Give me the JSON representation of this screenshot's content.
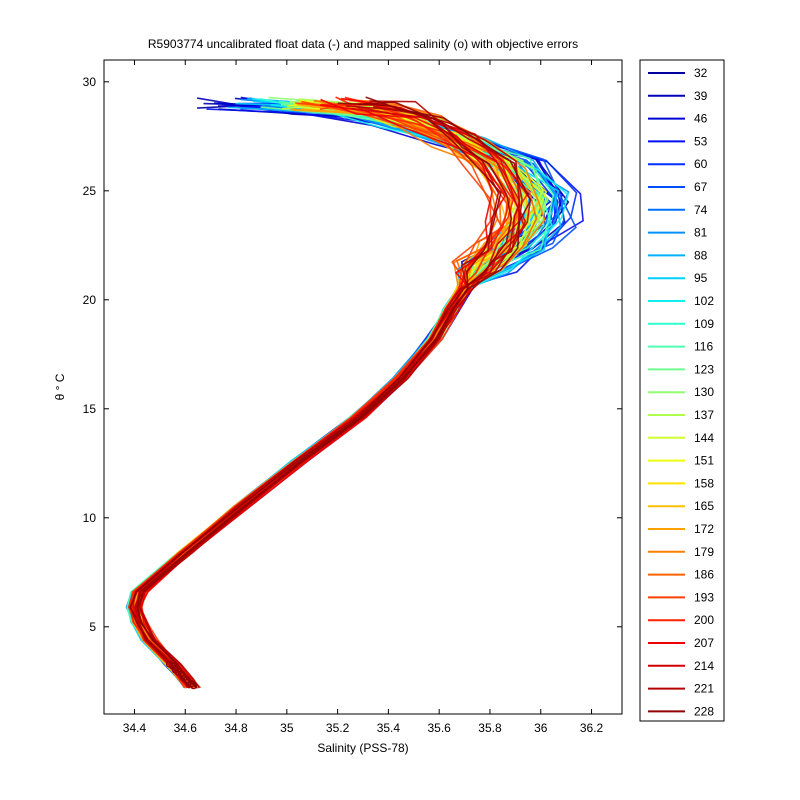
{
  "chart_data": {
    "type": "line",
    "title": "R5903774 uncalibrated float data (-) and mapped salinity (o) with objective errors",
    "xlabel": "Salinity (PSS-78)",
    "ylabel": "θ ° C",
    "xlim": [
      34.28,
      36.32
    ],
    "ylim": [
      1,
      31
    ],
    "x_ticks": [
      34.4,
      34.6,
      34.8,
      35,
      35.2,
      35.4,
      35.6,
      35.8,
      36,
      36.2
    ],
    "x_tick_labels": [
      "34.4",
      "34.6",
      "34.8",
      "35",
      "35.2",
      "35.4",
      "35.6",
      "35.8",
      "36",
      "36.2"
    ],
    "y_ticks": [
      5,
      10,
      15,
      20,
      25,
      30
    ],
    "y_tick_labels": [
      "5",
      "10",
      "15",
      "20",
      "25",
      "30"
    ],
    "grid": false,
    "legend_position": "outside-right",
    "colormap": "jet",
    "series": [
      {
        "name": "32",
        "color": "#00009f"
      },
      {
        "name": "39",
        "color": "#0000b8"
      },
      {
        "name": "46",
        "color": "#0000d4"
      },
      {
        "name": "53",
        "color": "#0010f0"
      },
      {
        "name": "60",
        "color": "#0030ff"
      },
      {
        "name": "67",
        "color": "#0050ff"
      },
      {
        "name": "74",
        "color": "#0070ff"
      },
      {
        "name": "81",
        "color": "#0090ff"
      },
      {
        "name": "88",
        "color": "#00b0ff"
      },
      {
        "name": "95",
        "color": "#00d0ff"
      },
      {
        "name": "102",
        "color": "#10f0ef"
      },
      {
        "name": "109",
        "color": "#30ffcf"
      },
      {
        "name": "116",
        "color": "#50ffaf"
      },
      {
        "name": "123",
        "color": "#70ff8f"
      },
      {
        "name": "130",
        "color": "#90ff6f"
      },
      {
        "name": "137",
        "color": "#b0ff4f"
      },
      {
        "name": "144",
        "color": "#d0ff2f"
      },
      {
        "name": "151",
        "color": "#f0ff10"
      },
      {
        "name": "158",
        "color": "#ffe000"
      },
      {
        "name": "165",
        "color": "#ffc000"
      },
      {
        "name": "172",
        "color": "#ffa000"
      },
      {
        "name": "179",
        "color": "#ff8000"
      },
      {
        "name": "186",
        "color": "#ff6000"
      },
      {
        "name": "193",
        "color": "#ff4000"
      },
      {
        "name": "200",
        "color": "#ff2000"
      },
      {
        "name": "207",
        "color": "#f00000"
      },
      {
        "name": "214",
        "color": "#d40000"
      },
      {
        "name": "221",
        "color": "#b40000"
      },
      {
        "name": "228",
        "color": "#900000"
      }
    ],
    "profile_shape": {
      "salinity": [
        34.63,
        34.6,
        34.55,
        34.46,
        34.42,
        34.4,
        34.42,
        34.6,
        34.82,
        35.05,
        35.28,
        35.45,
        35.58,
        35.65,
        35.7,
        35.82,
        35.98,
        36.08,
        36.1,
        35.95,
        35.7,
        35.4,
        35.1,
        34.75
      ],
      "theta": [
        2.2,
        2.6,
        3.3,
        4.4,
        5.2,
        5.9,
        6.6,
        8.4,
        10.5,
        12.6,
        14.6,
        16.4,
        18.2,
        19.6,
        20.5,
        21.5,
        22.5,
        23.6,
        24.7,
        26.2,
        27.3,
        28.2,
        28.8,
        29.0
      ]
    }
  }
}
